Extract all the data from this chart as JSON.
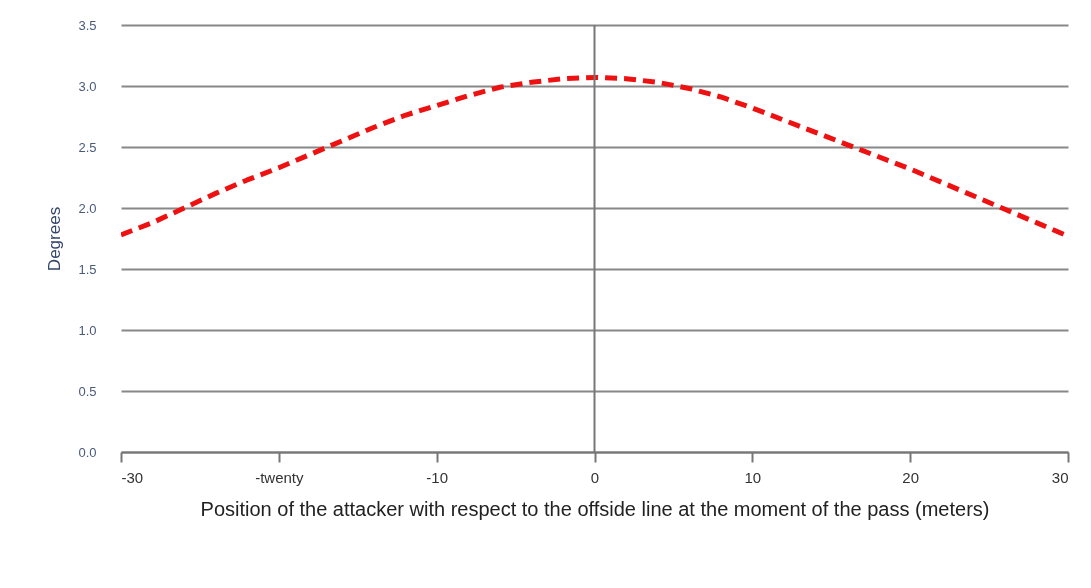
{
  "chart_data": {
    "type": "line",
    "xlabel": "Position of the attacker with respect to the offside line at the moment of the pass (meters)",
    "ylabel": "Degrees",
    "x": [
      -30,
      -28,
      -26,
      -24,
      -22,
      -20,
      -18,
      -16,
      -14,
      -12,
      -10,
      -8,
      -6,
      -4,
      -2,
      0,
      2,
      4,
      6,
      8,
      10,
      12,
      14,
      16,
      18,
      20,
      22,
      24,
      26,
      28,
      30
    ],
    "series": [
      {
        "color": "#ee1111",
        "values": [
          1.78,
          1.88,
          2.0,
          2.12,
          2.23,
          2.33,
          2.44,
          2.55,
          2.66,
          2.76,
          2.84,
          2.92,
          2.99,
          3.03,
          3.06,
          3.07,
          3.06,
          3.03,
          2.98,
          2.91,
          2.82,
          2.72,
          2.62,
          2.52,
          2.42,
          2.32,
          2.21,
          2.1,
          1.99,
          1.88,
          1.77
        ]
      }
    ],
    "xlim": [
      -30,
      30
    ],
    "xticks": [
      -30,
      {
        "value": -20,
        "label": "-twenty"
      },
      -10,
      0,
      10,
      20,
      30
    ],
    "ylim": [
      0,
      3.5
    ],
    "yticks": [
      {
        "value": 0,
        "label": "0.0"
      },
      0.5,
      {
        "value": 1,
        "label": "1.0"
      },
      1.5,
      {
        "value": 2,
        "label": "2.0"
      },
      2.5,
      {
        "value": 3,
        "label": "3.0"
      },
      3.5
    ],
    "ref_lines": [
      {
        "axis": "x",
        "value": 0
      }
    ],
    "grid": "y",
    "marker": "none",
    "line_style": "dashed"
  }
}
